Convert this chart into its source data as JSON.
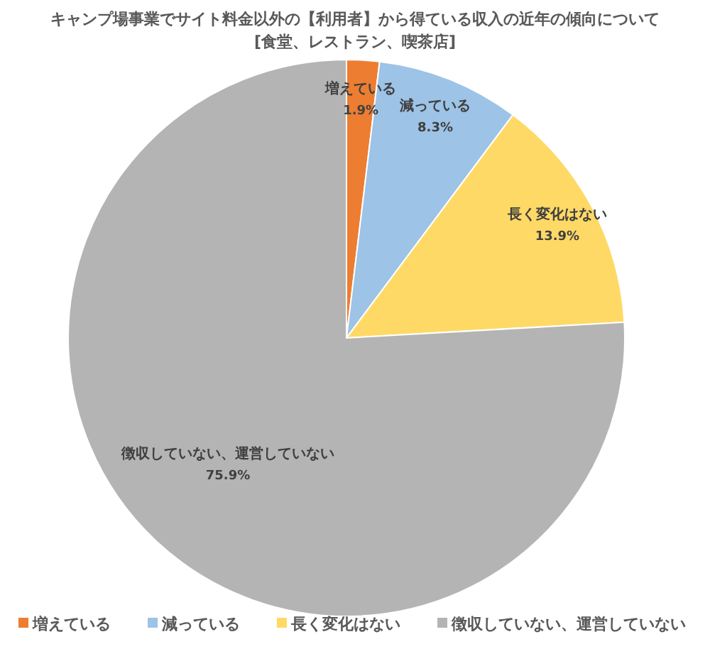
{
  "chart_data": {
    "type": "pie",
    "title": "キャンプ場事業でサイト料金以外の【利用者】から得ている収入の近年の傾向について",
    "subtitle": "[食堂、レストラン、喫茶店]",
    "categories": [
      "増えている",
      "減っている",
      "長く変化はない",
      "徴収していない、運営していない"
    ],
    "values": [
      1.9,
      8.3,
      13.9,
      75.9
    ],
    "value_labels": [
      "1.9%",
      "8.3%",
      "13.9%",
      "75.9%"
    ],
    "colors": [
      "#ed7d31",
      "#9dc3e6",
      "#ffd966",
      "#b4b4b4"
    ],
    "legend": "bottom"
  }
}
